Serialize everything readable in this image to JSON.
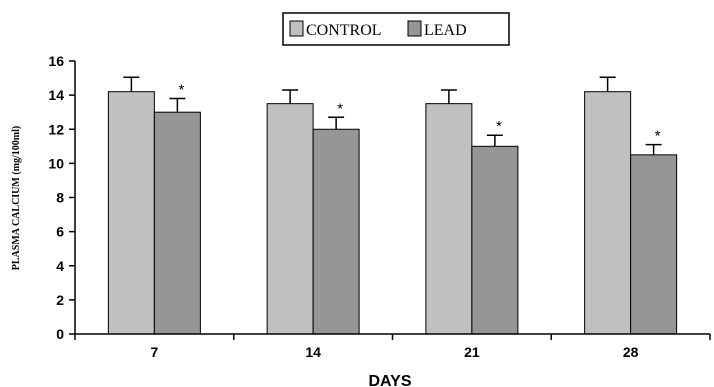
{
  "chart_data": {
    "type": "bar",
    "categories": [
      "7",
      "14",
      "21",
      "28"
    ],
    "series": [
      {
        "name": "CONTROL",
        "color": "#c0c0c0",
        "values": [
          14.2,
          13.5,
          13.5,
          14.2
        ],
        "errors": [
          0.85,
          0.8,
          0.8,
          0.85
        ],
        "significance": [
          "",
          "",
          "",
          ""
        ]
      },
      {
        "name": "LEAD",
        "color": "#969696",
        "values": [
          13.0,
          12.0,
          11.0,
          10.5
        ],
        "errors": [
          0.8,
          0.7,
          0.65,
          0.6
        ],
        "significance": [
          "*",
          "*",
          "*",
          "*"
        ]
      }
    ],
    "xlabel": "DAYS",
    "ylabel": "PLASMA CALCIUM (mg/100ml)",
    "ylim": [
      0,
      16
    ],
    "yticks": [
      0,
      2,
      4,
      6,
      8,
      10,
      12,
      14,
      16
    ],
    "grid": false,
    "legend_position": "top-center"
  }
}
